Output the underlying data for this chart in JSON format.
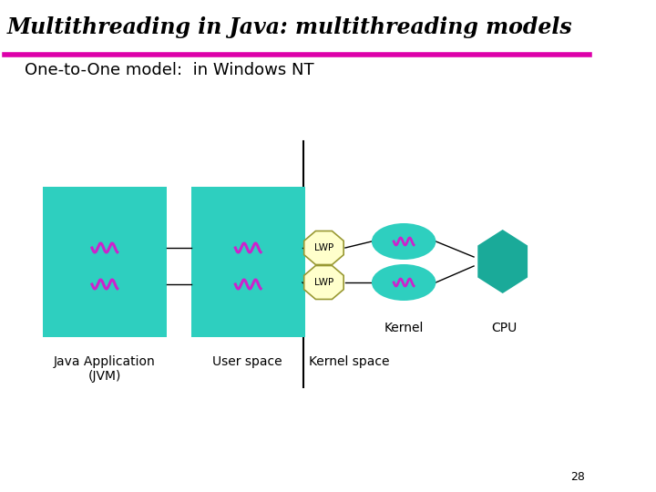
{
  "title": "Multithreading in Java: multithreading models",
  "subtitle": "One-to-One model:  in Windows NT",
  "bg_color": "#ffffff",
  "title_color": "#000000",
  "subtitle_color": "#000000",
  "teal_color": "#2ecfbf",
  "magenta_color": "#cc22cc",
  "lwp_color": "#ffffcc",
  "lwp_border": "#999933",
  "kernel_ellipse_color": "#2ecfbf",
  "cpu_hex_color": "#1aaa99",
  "line_color": "#000000",
  "divider_color": "#dd00aa",
  "label_java": "Java Application\n(JVM)",
  "label_user": "User space",
  "label_kernel_space": "Kernel space",
  "label_kernel": "Kernel",
  "label_cpu": "CPU",
  "label_lwp1": "LWP",
  "label_lwp2": "LWP",
  "page_number": "28",
  "title_fontsize": 17,
  "subtitle_fontsize": 13,
  "label_fontsize": 10
}
